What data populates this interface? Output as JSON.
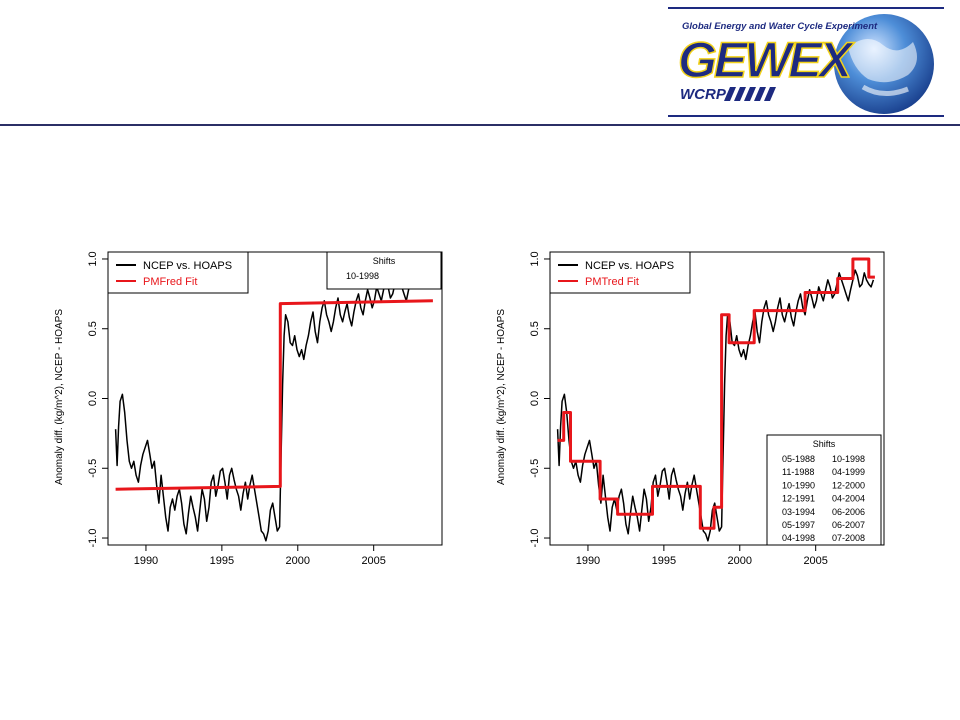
{
  "logo": {
    "banner_text": "Global Energy and Water Cycle Experiment",
    "word": "GEWEX",
    "sub": "WCRP",
    "colors": {
      "navy": "#1d2a80",
      "yellow": "#f2d21a",
      "earth_blue": "#2f6fc4"
    }
  },
  "header": {
    "rule_color": "#2b2f66"
  },
  "chart_data": [
    {
      "type": "line",
      "title": "",
      "xlabel": "",
      "ylabel": "Anomaly diff. (kg/m^2), NCEP - HOAPS",
      "xlim": [
        1987.5,
        2009.5
      ],
      "ylim": [
        -1.05,
        1.05
      ],
      "x_ticks": [
        1990,
        1995,
        2000,
        2005
      ],
      "y_ticks": [
        -1.0,
        -0.5,
        0.0,
        0.5,
        1.0
      ],
      "x_tick_labels": [
        "1990",
        "1995",
        "2000",
        "2005"
      ],
      "y_tick_labels": [
        "-1.0",
        "-0.5",
        "0.0",
        "0.5",
        "1.0"
      ],
      "legend": {
        "position": "top-left",
        "entries": [
          {
            "label": "NCEP vs. HOAPS",
            "color": "#000000"
          },
          {
            "label": "PMFred Fit",
            "color": "#e8161b"
          }
        ]
      },
      "shifts_box": {
        "position": "top-right",
        "title": "Shifts",
        "entries": [
          "10-1998"
        ]
      },
      "series": [
        {
          "name": "NCEP vs. HOAPS",
          "color": "#000000",
          "x": [
            1988.0,
            1988.1,
            1988.2,
            1988.3,
            1988.45,
            1988.6,
            1988.75,
            1988.9,
            1989.05,
            1989.2,
            1989.35,
            1989.5,
            1989.65,
            1989.8,
            1989.95,
            1990.1,
            1990.25,
            1990.4,
            1990.55,
            1990.7,
            1990.85,
            1991.0,
            1991.15,
            1991.3,
            1991.45,
            1991.6,
            1991.75,
            1991.9,
            1992.05,
            1992.2,
            1992.35,
            1992.5,
            1992.65,
            1992.8,
            1992.95,
            1993.1,
            1993.25,
            1993.4,
            1993.55,
            1993.7,
            1993.85,
            1994.0,
            1994.15,
            1994.3,
            1994.45,
            1994.6,
            1994.75,
            1994.9,
            1995.05,
            1995.2,
            1995.35,
            1995.5,
            1995.65,
            1995.8,
            1995.95,
            1996.1,
            1996.25,
            1996.4,
            1996.55,
            1996.7,
            1996.85,
            1997.0,
            1997.15,
            1997.3,
            1997.45,
            1997.6,
            1997.75,
            1997.9,
            1998.05,
            1998.2,
            1998.35,
            1998.5,
            1998.65,
            1998.8,
            1998.9,
            1999.0,
            1999.1,
            1999.2,
            1999.35,
            1999.5,
            1999.65,
            1999.8,
            1999.95,
            2000.1,
            2000.25,
            2000.4,
            2000.55,
            2000.7,
            2000.85,
            2001.0,
            2001.15,
            2001.3,
            2001.45,
            2001.6,
            2001.75,
            2001.9,
            2002.05,
            2002.2,
            2002.35,
            2002.5,
            2002.65,
            2002.8,
            2002.95,
            2003.1,
            2003.25,
            2003.4,
            2003.55,
            2003.7,
            2003.85,
            2004.0,
            2004.15,
            2004.3,
            2004.45,
            2004.6,
            2004.75,
            2004.9,
            2005.05,
            2005.2,
            2005.35,
            2005.5,
            2005.65,
            2005.8,
            2005.95,
            2006.1,
            2006.25,
            2006.4,
            2006.55,
            2006.7,
            2006.85,
            2007.0,
            2007.15,
            2007.3,
            2007.45,
            2007.6,
            2007.75,
            2007.9,
            2008.05,
            2008.2,
            2008.35,
            2008.5,
            2008.65,
            2008.8
          ],
          "y": [
            -0.22,
            -0.48,
            -0.2,
            -0.02,
            0.03,
            -0.1,
            -0.3,
            -0.45,
            -0.5,
            -0.45,
            -0.55,
            -0.6,
            -0.48,
            -0.4,
            -0.35,
            -0.3,
            -0.4,
            -0.5,
            -0.45,
            -0.62,
            -0.75,
            -0.55,
            -0.7,
            -0.85,
            -0.95,
            -0.78,
            -0.72,
            -0.8,
            -0.7,
            -0.65,
            -0.75,
            -0.9,
            -0.97,
            -0.82,
            -0.7,
            -0.78,
            -0.85,
            -0.95,
            -0.8,
            -0.65,
            -0.72,
            -0.88,
            -0.78,
            -0.6,
            -0.55,
            -0.7,
            -0.62,
            -0.52,
            -0.5,
            -0.6,
            -0.72,
            -0.55,
            -0.5,
            -0.58,
            -0.65,
            -0.7,
            -0.8,
            -0.68,
            -0.6,
            -0.72,
            -0.62,
            -0.55,
            -0.65,
            -0.75,
            -0.85,
            -0.95,
            -0.97,
            -1.02,
            -0.95,
            -0.8,
            -0.75,
            -0.85,
            -0.95,
            -0.92,
            -0.4,
            0.1,
            0.45,
            0.6,
            0.55,
            0.4,
            0.38,
            0.45,
            0.35,
            0.3,
            0.35,
            0.28,
            0.38,
            0.45,
            0.55,
            0.62,
            0.48,
            0.4,
            0.55,
            0.65,
            0.7,
            0.6,
            0.55,
            0.48,
            0.55,
            0.65,
            0.72,
            0.6,
            0.55,
            0.62,
            0.68,
            0.58,
            0.52,
            0.62,
            0.7,
            0.75,
            0.65,
            0.6,
            0.7,
            0.78,
            0.72,
            0.65,
            0.7,
            0.8,
            0.75,
            0.7,
            0.78,
            0.85,
            0.8,
            0.72,
            0.75,
            0.82,
            0.9,
            0.85,
            0.8,
            0.75,
            0.7,
            0.78,
            0.85,
            0.92,
            0.88,
            0.8,
            0.82,
            0.9,
            0.85,
            0.82,
            0.8,
            0.85
          ],
          "x_cont": [],
          "note": ""
        },
        {
          "name": "PMFred Fit",
          "color": "#e8161b",
          "x": [
            1988.0,
            1998.85,
            1998.85,
            2008.9
          ],
          "y": [
            -0.65,
            -0.63,
            0.68,
            0.7
          ]
        }
      ]
    },
    {
      "type": "line",
      "title": "",
      "xlabel": "",
      "ylabel": "Anomaly diff. (kg/m^2), NCEP - HOAPS",
      "xlim": [
        1987.5,
        2009.5
      ],
      "ylim": [
        -1.05,
        1.05
      ],
      "x_ticks": [
        1990,
        1995,
        2000,
        2005
      ],
      "y_ticks": [
        -1.0,
        -0.5,
        0.0,
        0.5,
        1.0
      ],
      "x_tick_labels": [
        "1990",
        "1995",
        "2000",
        "2005"
      ],
      "y_tick_labels": [
        "-1.0",
        "-0.5",
        "0.0",
        "0.5",
        "1.0"
      ],
      "legend": {
        "position": "top-left",
        "entries": [
          {
            "label": "NCEP vs. HOAPS",
            "color": "#000000"
          },
          {
            "label": "PMTred Fit",
            "color": "#e8161b"
          }
        ]
      },
      "shifts_box": {
        "position": "bottom-right",
        "title": "Shifts",
        "entries": [
          "05-1988",
          "10-1998",
          "11-1988",
          "04-1999",
          "10-1990",
          "12-2000",
          "12-1991",
          "04-2004",
          "03-1994",
          "06-2006",
          "05-1997",
          "06-2007",
          "04-1998",
          "07-2008"
        ]
      },
      "series": [
        {
          "name": "NCEP vs. HOAPS",
          "color": "#000000",
          "x": [
            1988.0,
            1988.1,
            1988.2,
            1988.3,
            1988.45,
            1988.6,
            1988.75,
            1988.9,
            1989.05,
            1989.2,
            1989.35,
            1989.5,
            1989.65,
            1989.8,
            1989.95,
            1990.1,
            1990.25,
            1990.4,
            1990.55,
            1990.7,
            1990.85,
            1991.0,
            1991.15,
            1991.3,
            1991.45,
            1991.6,
            1991.75,
            1991.9,
            1992.05,
            1992.2,
            1992.35,
            1992.5,
            1992.65,
            1992.8,
            1992.95,
            1993.1,
            1993.25,
            1993.4,
            1993.55,
            1993.7,
            1993.85,
            1994.0,
            1994.15,
            1994.3,
            1994.45,
            1994.6,
            1994.75,
            1994.9,
            1995.05,
            1995.2,
            1995.35,
            1995.5,
            1995.65,
            1995.8,
            1995.95,
            1996.1,
            1996.25,
            1996.4,
            1996.55,
            1996.7,
            1996.85,
            1997.0,
            1997.15,
            1997.3,
            1997.45,
            1997.6,
            1997.75,
            1997.9,
            1998.05,
            1998.2,
            1998.35,
            1998.5,
            1998.65,
            1998.8,
            1998.9,
            1999.0,
            1999.1,
            1999.2,
            1999.35,
            1999.5,
            1999.65,
            1999.8,
            1999.95,
            2000.1,
            2000.25,
            2000.4,
            2000.55,
            2000.7,
            2000.85,
            2001.0,
            2001.15,
            2001.3,
            2001.45,
            2001.6,
            2001.75,
            2001.9,
            2002.05,
            2002.2,
            2002.35,
            2002.5,
            2002.65,
            2002.8,
            2002.95,
            2003.1,
            2003.25,
            2003.4,
            2003.55,
            2003.7,
            2003.85,
            2004.0,
            2004.15,
            2004.3,
            2004.45,
            2004.6,
            2004.75,
            2004.9,
            2005.05,
            2005.2,
            2005.35,
            2005.5,
            2005.65,
            2005.8,
            2005.95,
            2006.1,
            2006.25,
            2006.4,
            2006.55,
            2006.7,
            2006.85,
            2007.0,
            2007.15,
            2007.3,
            2007.45,
            2007.6,
            2007.75,
            2007.9,
            2008.05,
            2008.2,
            2008.35,
            2008.5,
            2008.65,
            2008.8
          ],
          "y": [
            -0.22,
            -0.48,
            -0.2,
            -0.02,
            0.03,
            -0.1,
            -0.3,
            -0.45,
            -0.5,
            -0.45,
            -0.55,
            -0.6,
            -0.48,
            -0.4,
            -0.35,
            -0.3,
            -0.4,
            -0.5,
            -0.45,
            -0.62,
            -0.75,
            -0.55,
            -0.7,
            -0.85,
            -0.95,
            -0.78,
            -0.72,
            -0.8,
            -0.7,
            -0.65,
            -0.75,
            -0.9,
            -0.97,
            -0.82,
            -0.7,
            -0.78,
            -0.85,
            -0.95,
            -0.8,
            -0.65,
            -0.72,
            -0.88,
            -0.78,
            -0.6,
            -0.55,
            -0.7,
            -0.62,
            -0.52,
            -0.5,
            -0.6,
            -0.72,
            -0.55,
            -0.5,
            -0.58,
            -0.65,
            -0.7,
            -0.8,
            -0.68,
            -0.6,
            -0.72,
            -0.62,
            -0.55,
            -0.65,
            -0.75,
            -0.85,
            -0.95,
            -0.97,
            -1.02,
            -0.95,
            -0.8,
            -0.75,
            -0.85,
            -0.95,
            -0.92,
            -0.4,
            0.1,
            0.45,
            0.6,
            0.55,
            0.4,
            0.38,
            0.45,
            0.35,
            0.3,
            0.35,
            0.28,
            0.38,
            0.45,
            0.55,
            0.62,
            0.48,
            0.4,
            0.55,
            0.65,
            0.7,
            0.6,
            0.55,
            0.48,
            0.55,
            0.65,
            0.72,
            0.6,
            0.55,
            0.62,
            0.68,
            0.58,
            0.52,
            0.62,
            0.7,
            0.75,
            0.65,
            0.6,
            0.7,
            0.78,
            0.72,
            0.65,
            0.7,
            0.8,
            0.75,
            0.7,
            0.78,
            0.85,
            0.8,
            0.72,
            0.75,
            0.82,
            0.9,
            0.85,
            0.8,
            0.75,
            0.7,
            0.78,
            0.85,
            0.92,
            0.88,
            0.8,
            0.82,
            0.9,
            0.85,
            0.82,
            0.8,
            0.85
          ]
        },
        {
          "name": "PMTred Fit",
          "color": "#e8161b",
          "x": [
            1988.0,
            1988.4,
            1988.4,
            1988.85,
            1988.85,
            1990.8,
            1990.8,
            1991.95,
            1991.95,
            1994.25,
            1994.25,
            1997.4,
            1997.4,
            1998.3,
            1998.3,
            1998.8,
            1998.8,
            1999.3,
            1999.3,
            2000.95,
            2000.95,
            2004.3,
            2004.3,
            2006.45,
            2006.45,
            2007.45,
            2007.45,
            2008.5,
            2008.5,
            2008.9
          ],
          "y": [
            -0.3,
            -0.3,
            -0.1,
            -0.1,
            -0.45,
            -0.45,
            -0.72,
            -0.72,
            -0.83,
            -0.83,
            -0.63,
            -0.63,
            -0.93,
            -0.93,
            -0.78,
            -0.78,
            0.6,
            0.6,
            0.4,
            0.4,
            0.63,
            0.63,
            0.76,
            0.76,
            0.86,
            0.86,
            1.0,
            1.0,
            0.87,
            0.87
          ]
        }
      ]
    }
  ]
}
